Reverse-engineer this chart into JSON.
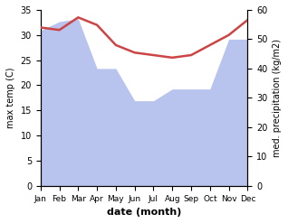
{
  "months": [
    "Jan",
    "Feb",
    "Mar",
    "Apr",
    "May",
    "Jun",
    "Jul",
    "Aug",
    "Sep",
    "Oct",
    "Nov",
    "Dec"
  ],
  "temperature": [
    31.5,
    31.0,
    33.5,
    32.0,
    28.0,
    26.5,
    26.0,
    25.5,
    26.0,
    28.0,
    30.0,
    33.0
  ],
  "precipitation": [
    53.0,
    56.0,
    57.0,
    40.0,
    40.0,
    29.0,
    29.0,
    33.0,
    33.0,
    33.0,
    50.0,
    50.0
  ],
  "temp_color": "#cc4444",
  "precip_color": "#b8c4ed",
  "temp_ylim": [
    0,
    35
  ],
  "precip_ylim": [
    0,
    60
  ],
  "temp_yticks": [
    0,
    5,
    10,
    15,
    20,
    25,
    30,
    35
  ],
  "precip_yticks": [
    0,
    10,
    20,
    30,
    40,
    50,
    60
  ],
  "ylabel_left": "max temp (C)",
  "ylabel_right": "med. precipitation (kg/m2)",
  "xlabel": "date (month)",
  "background_color": "#ffffff"
}
